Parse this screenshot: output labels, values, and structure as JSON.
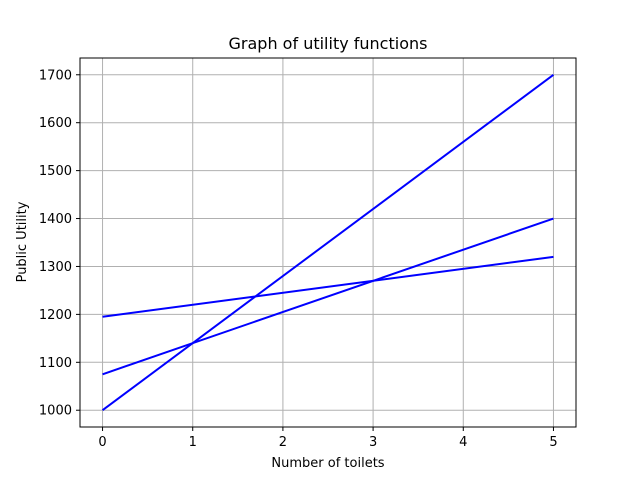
{
  "chart_data": {
    "type": "line",
    "title": "Graph of utility functions",
    "xlabel": "Number of toilets",
    "ylabel": "Public Utility",
    "xlim": [
      -0.25,
      5.25
    ],
    "ylim": [
      965,
      1735
    ],
    "xticks": [
      0,
      1,
      2,
      3,
      4,
      5
    ],
    "yticks": [
      1000,
      1100,
      1200,
      1300,
      1400,
      1500,
      1600,
      1700
    ],
    "grid": true,
    "line_color": "#0000ff",
    "series": [
      {
        "x": [
          0,
          5
        ],
        "y": [
          1000,
          1700
        ]
      },
      {
        "x": [
          0,
          5
        ],
        "y": [
          1075,
          1400
        ]
      },
      {
        "x": [
          0,
          5
        ],
        "y": [
          1195,
          1320
        ]
      }
    ]
  }
}
